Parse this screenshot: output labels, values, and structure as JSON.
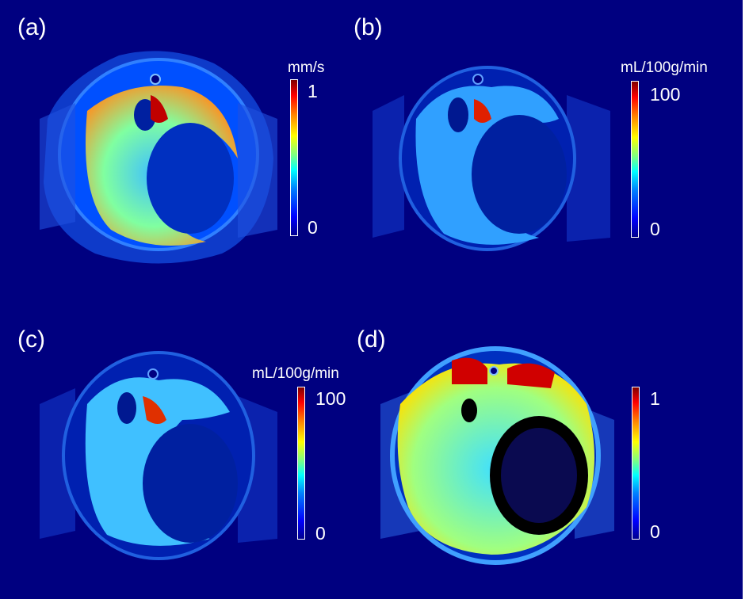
{
  "colormap": [
    "#00008f",
    "#0000ff",
    "#0080ff",
    "#00ffff",
    "#80ff80",
    "#ffff00",
    "#ff8000",
    "#ff0000",
    "#800000"
  ],
  "background_color": "#000080",
  "panels": [
    {
      "label": "(a)",
      "unit": "mm/s",
      "tick_max": "1",
      "tick_min": "0"
    },
    {
      "label": "(b)",
      "unit": "mL/100g/min",
      "tick_max": "100",
      "tick_min": "0"
    },
    {
      "label": "(c)",
      "unit": "mL/100g/min",
      "tick_max": "100",
      "tick_min": "0"
    },
    {
      "label": "(d)",
      "unit": "",
      "tick_max": "1",
      "tick_min": "0"
    }
  ]
}
